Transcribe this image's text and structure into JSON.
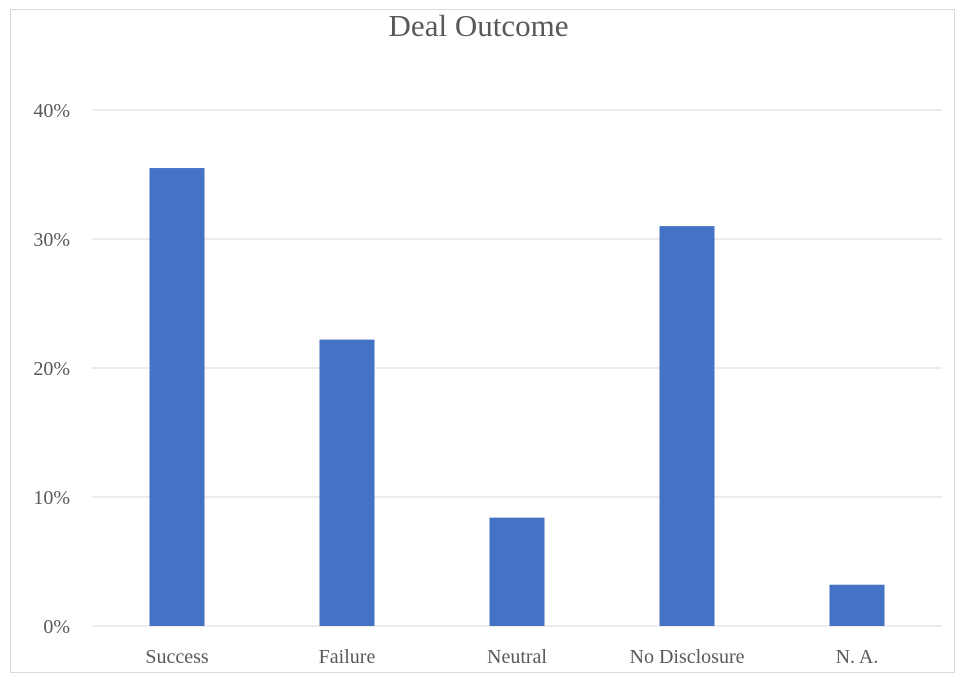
{
  "chart_data": {
    "type": "bar",
    "title": "Deal Outcome",
    "categories": [
      "Success",
      "Failure",
      "Neutral",
      "No Disclosure",
      "N. A."
    ],
    "values": [
      35.5,
      22.2,
      8.4,
      31.0,
      3.2
    ],
    "unit": "%",
    "ylim": [
      0,
      40
    ],
    "yticks": [
      0,
      10,
      20,
      30,
      40
    ],
    "ytick_labels": [
      "0%",
      "10%",
      "20%",
      "30%",
      "40%"
    ],
    "grid": true,
    "legend": "none",
    "bar_color": "#4472c4",
    "grid_color": "#d9d9d9"
  }
}
